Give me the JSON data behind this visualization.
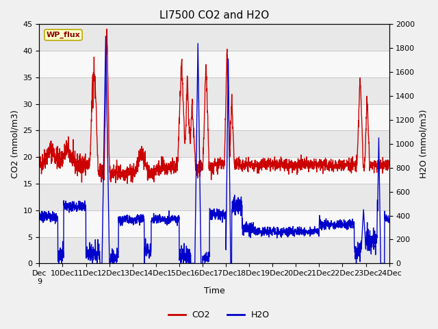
{
  "title": "LI7500 CO2 and H2O",
  "xlabel": "Time",
  "ylabel_left": "CO2 (mmol/m3)",
  "ylabel_right": "H2O (mmol/m3)",
  "ylim_left": [
    0,
    45
  ],
  "ylim_right": [
    0,
    2000
  ],
  "yticks_left": [
    0,
    5,
    10,
    15,
    20,
    25,
    30,
    35,
    40,
    45
  ],
  "yticks_right": [
    0,
    200,
    400,
    600,
    800,
    1000,
    1200,
    1400,
    1600,
    1800,
    2000
  ],
  "xtick_labels": [
    "Dec 9",
    "Dec 10",
    "Dec 11",
    "Dec 12",
    "Dec 13",
    "Dec 14",
    "Dec 15",
    "Dec 16",
    "Dec 17",
    "Dec 18",
    "Dec 19",
    "Dec 20",
    "Dec 21",
    "Dec 22",
    "Dec 23",
    "Dec 24"
  ],
  "co2_color": "#cc0000",
  "h2o_color": "#0000cc",
  "legend_box_color": "#ffffcc",
  "legend_box_label": "WP_flux",
  "line_width": 1.0,
  "grid_color": "#c8c8c8",
  "n_days": 15,
  "pts_per_day": 144,
  "scale_h2o": 0.0225
}
